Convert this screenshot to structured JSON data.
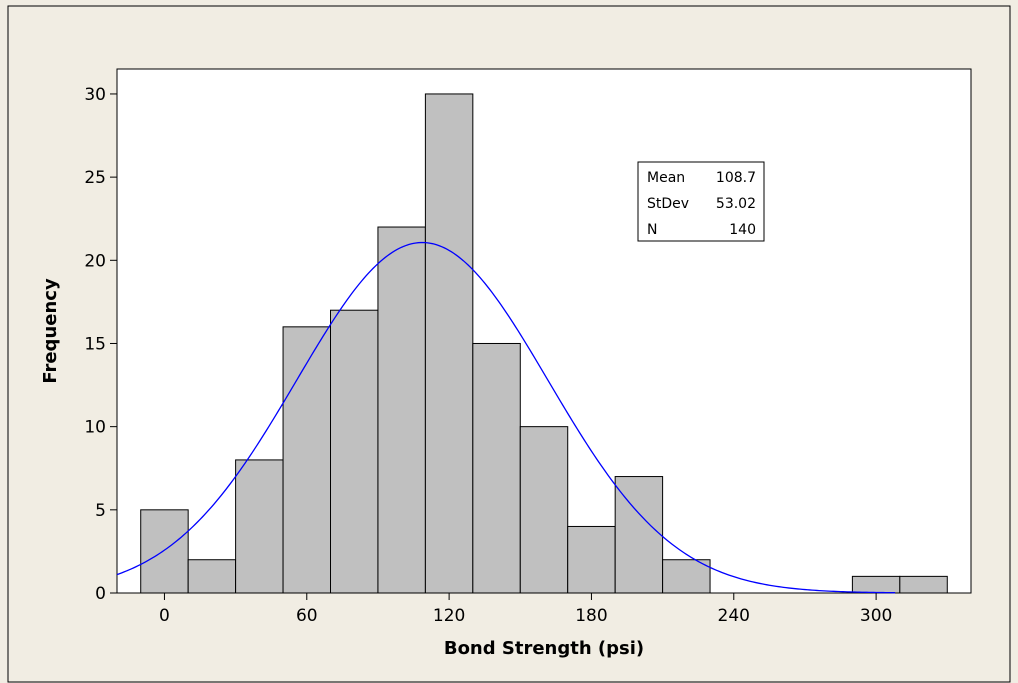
{
  "chart_data": {
    "type": "bar",
    "xlabel": "Bond Strength (psi)",
    "ylabel": "Frequency",
    "xlim": [
      -20,
      340
    ],
    "ylim": [
      0,
      31.5
    ],
    "xticks": [
      0,
      60,
      120,
      180,
      240,
      300
    ],
    "yticks": [
      0,
      5,
      10,
      15,
      20,
      25,
      30
    ],
    "bin_width": 20,
    "bins": [
      {
        "start": -10,
        "end": 10,
        "value": 5
      },
      {
        "start": 10,
        "end": 30,
        "value": 2
      },
      {
        "start": 30,
        "end": 50,
        "value": 8
      },
      {
        "start": 50,
        "end": 70,
        "value": 16
      },
      {
        "start": 70,
        "end": 90,
        "value": 17
      },
      {
        "start": 90,
        "end": 110,
        "value": 22
      },
      {
        "start": 110,
        "end": 130,
        "value": 30
      },
      {
        "start": 130,
        "end": 150,
        "value": 15
      },
      {
        "start": 150,
        "end": 170,
        "value": 10
      },
      {
        "start": 170,
        "end": 190,
        "value": 4
      },
      {
        "start": 190,
        "end": 210,
        "value": 7
      },
      {
        "start": 210,
        "end": 230,
        "value": 2
      },
      {
        "start": 230,
        "end": 250,
        "value": 0
      },
      {
        "start": 250,
        "end": 270,
        "value": 0
      },
      {
        "start": 270,
        "end": 290,
        "value": 0
      },
      {
        "start": 290,
        "end": 310,
        "value": 1
      },
      {
        "start": 310,
        "end": 330,
        "value": 1
      }
    ],
    "fit": {
      "type": "normal",
      "mean": 108.7,
      "stdev": 53.02,
      "n": 140
    },
    "stats_box": [
      {
        "label": "Mean",
        "value": "108.7"
      },
      {
        "label": "StDev",
        "value": "53.02"
      },
      {
        "label": "N",
        "value": "140"
      }
    ],
    "colors": {
      "bar_fill": "#c0c0c0",
      "bar_stroke": "#000000",
      "curve": "#0000ff",
      "background": "#f1ede3",
      "plot_bg": "#ffffff"
    }
  }
}
